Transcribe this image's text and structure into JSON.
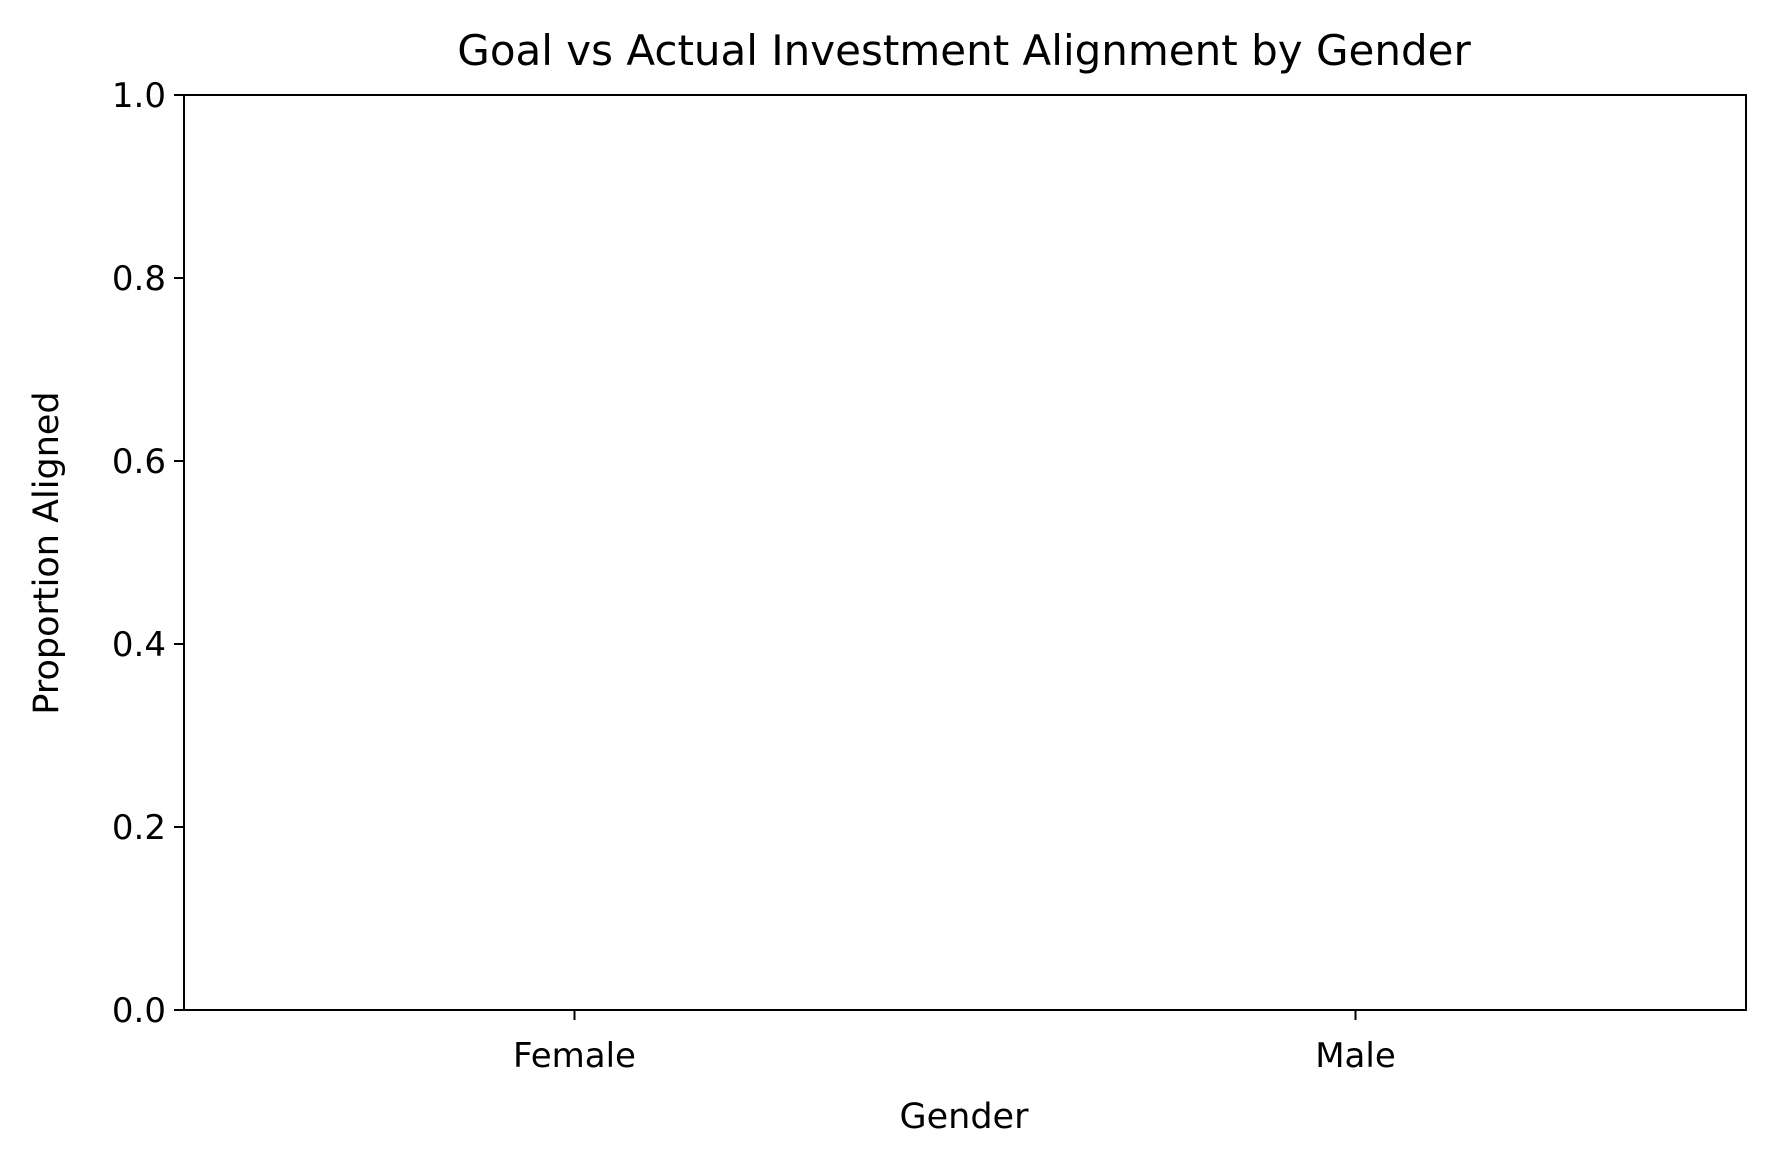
{
  "chart_data": {
    "type": "bar",
    "title": "Goal vs Actual Investment Alignment by Gender",
    "xlabel": "Gender",
    "ylabel": "Proportion Aligned",
    "categories": [
      "Female",
      "Male"
    ],
    "values": [
      null,
      null
    ],
    "ylim": [
      0.0,
      1.0
    ],
    "yticks": [
      "0.0",
      "0.2",
      "0.4",
      "0.6",
      "0.8",
      "1.0"
    ],
    "grid": false,
    "legend": "none"
  }
}
